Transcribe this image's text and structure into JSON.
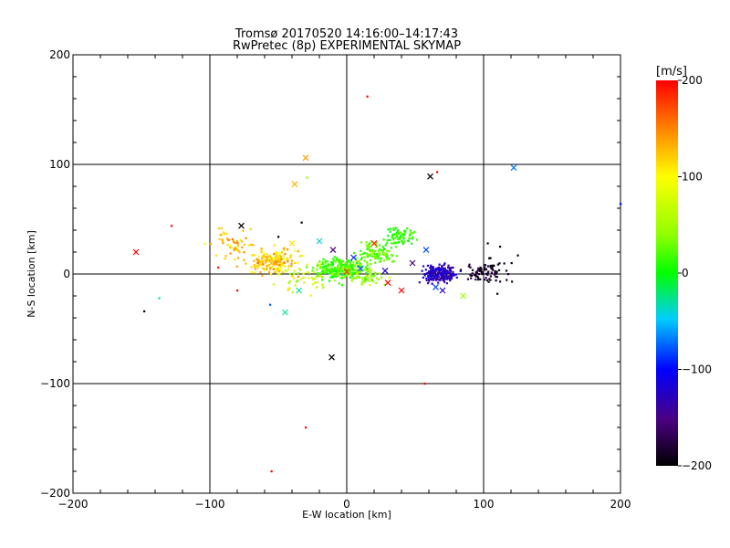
{
  "title": "Tromsø 20170520 14:16:00–14:17:43",
  "subtitle": "RwPretec (8p) EXPERIMENTAL SKYMAP",
  "chart_data": {
    "type": "scatter",
    "title": "Tromsø 20170520 14:16:00–14:17:43",
    "subtitle": "RwPretec (8p) EXPERIMENTAL SKYMAP",
    "xlabel": "E-W location [km]",
    "ylabel": "N-S location [km]",
    "xlim": [
      -200,
      200
    ],
    "ylim": [
      -200,
      200
    ],
    "xticks": [
      -200,
      -100,
      0,
      100,
      200
    ],
    "yticks": [
      -200,
      -100,
      0,
      100,
      200
    ],
    "xtick_labels": [
      "−200",
      "−100",
      "0",
      "100",
      "200"
    ],
    "ytick_labels": [
      "−200",
      "−100",
      "0",
      "100",
      "200"
    ],
    "grid": true,
    "colorbar": {
      "label": "[m/s]",
      "range": [
        -200,
        200
      ],
      "ticks": [
        200,
        100,
        0,
        -100,
        -200
      ],
      "tick_labels": [
        "200",
        "100",
        "0",
        "−100",
        "−200"
      ],
      "colormap": "rainbow (black-purple-blue-cyan-green-yellow-orange-red)"
    },
    "series": [
      {
        "marker": "x",
        "points": [
          [
            -154,
            20,
            200
          ],
          [
            -77,
            44,
            -200
          ],
          [
            -30,
            106,
            140
          ],
          [
            -38,
            82,
            130
          ],
          [
            61,
            89,
            -200
          ],
          [
            122,
            97,
            -70
          ],
          [
            -11,
            -76,
            -200
          ],
          [
            -45,
            -35,
            -30
          ],
          [
            -40,
            28,
            110
          ],
          [
            -20,
            30,
            -40
          ],
          [
            -10,
            22,
            -150
          ],
          [
            -5,
            10,
            20
          ],
          [
            10,
            5,
            -80
          ],
          [
            20,
            28,
            190
          ],
          [
            28,
            3,
            -120
          ],
          [
            40,
            -15,
            200
          ],
          [
            30,
            -8,
            200
          ],
          [
            58,
            22,
            -80
          ],
          [
            48,
            10,
            -150
          ],
          [
            70,
            -15,
            -130
          ],
          [
            85,
            -20,
            50
          ],
          [
            -50,
            15,
            110
          ],
          [
            -35,
            -15,
            -30
          ],
          [
            -20,
            8,
            70
          ],
          [
            0,
            2,
            180
          ],
          [
            15,
            -5,
            30
          ],
          [
            65,
            -12,
            -80
          ],
          [
            -55,
            10,
            130
          ],
          [
            5,
            15,
            -90
          ]
        ]
      },
      {
        "marker": "dot",
        "points": [
          [
            15,
            162,
            200
          ],
          [
            -29,
            88,
            40
          ],
          [
            -128,
            44,
            200
          ],
          [
            -148,
            -34,
            -200
          ],
          [
            -137,
            -22,
            -20
          ],
          [
            -55,
            -180,
            200
          ],
          [
            -30,
            -140,
            200
          ],
          [
            57,
            -100,
            200
          ],
          [
            200,
            64,
            -100
          ],
          [
            -56,
            -28,
            -80
          ],
          [
            -80,
            -15,
            200
          ],
          [
            -94,
            6,
            190
          ],
          [
            -50,
            34,
            -200
          ],
          [
            103,
            28,
            -200
          ],
          [
            66,
            93,
            200
          ],
          [
            -33,
            47,
            -200
          ],
          [
            112,
            25,
            -200
          ],
          [
            125,
            17,
            -200
          ],
          [
            110,
            -18,
            -200
          ],
          [
            -22,
            -12,
            60
          ]
        ]
      }
    ],
    "clusters": [
      {
        "marker": "dot",
        "center": [
          -55,
          12
        ],
        "spread": [
          16,
          10
        ],
        "count": 170,
        "value": 120,
        "value_spread": 30
      },
      {
        "marker": "dot",
        "center": [
          -82,
          28
        ],
        "spread": [
          14,
          12
        ],
        "count": 55,
        "value": 125,
        "value_spread": 25
      },
      {
        "marker": "dot",
        "center": [
          -5,
          4
        ],
        "spread": [
          16,
          8
        ],
        "count": 240,
        "value": 15,
        "value_spread": 22
      },
      {
        "marker": "dot",
        "center": [
          22,
          20
        ],
        "spread": [
          12,
          8
        ],
        "count": 110,
        "value": 25,
        "value_spread": 20
      },
      {
        "marker": "dot",
        "center": [
          40,
          34
        ],
        "spread": [
          10,
          7
        ],
        "count": 70,
        "value": 10,
        "value_spread": 18
      },
      {
        "marker": "dot",
        "center": [
          10,
          0
        ],
        "spread": [
          16,
          8
        ],
        "count": 90,
        "value": 40,
        "value_spread": 30
      },
      {
        "marker": "dot",
        "center": [
          68,
          0
        ],
        "spread": [
          10,
          7
        ],
        "count": 210,
        "value": -125,
        "value_spread": 20
      },
      {
        "marker": "dot",
        "center": [
          102,
          2
        ],
        "spread": [
          14,
          9
        ],
        "count": 85,
        "value": -185,
        "value_spread": 15
      },
      {
        "marker": "dot",
        "center": [
          -30,
          -5
        ],
        "spread": [
          16,
          10
        ],
        "count": 45,
        "value": 70,
        "value_spread": 40
      }
    ]
  }
}
